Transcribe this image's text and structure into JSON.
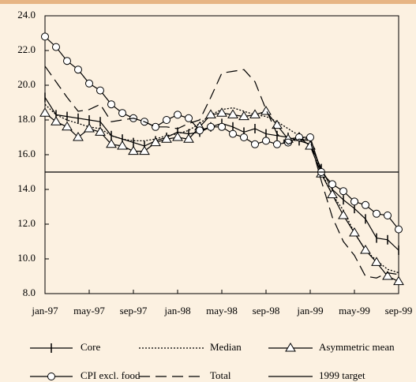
{
  "chart_data": {
    "type": "line",
    "categories": [
      "jan-97",
      null,
      null,
      null,
      "may-97",
      null,
      null,
      null,
      "sep-97",
      null,
      null,
      null,
      "jan-98",
      null,
      null,
      null,
      "may-98",
      null,
      null,
      null,
      "sep-98",
      null,
      null,
      null,
      "jan-99",
      null,
      null,
      null,
      "may-99",
      null,
      null,
      null,
      "sep-99"
    ],
    "ylim": [
      8,
      24
    ],
    "yticks": [
      {
        "value": 8,
        "label": "8.0"
      },
      {
        "value": 10,
        "label": "10.0"
      },
      {
        "value": 12,
        "label": "12.0"
      },
      {
        "value": 14,
        "label": "14.0"
      },
      {
        "value": 16,
        "label": "16.0"
      },
      {
        "value": 18,
        "label": "18.0"
      },
      {
        "value": 20,
        "label": "20.0"
      },
      {
        "value": 22,
        "label": "22.0"
      },
      {
        "value": 24,
        "label": "24.0"
      }
    ],
    "grid": false,
    "series": [
      {
        "name": "Core",
        "color": "#000000",
        "dash": "solid",
        "marker": "plus",
        "values": [
          19.3,
          18.3,
          18.2,
          18.1,
          18.0,
          17.9,
          17.1,
          16.9,
          16.7,
          16.5,
          16.8,
          17.0,
          17.3,
          17.2,
          17.3,
          17.6,
          17.8,
          17.6,
          17.3,
          17.5,
          17.2,
          17.1,
          17.0,
          16.8,
          16.6,
          15.2,
          14.0,
          13.4,
          12.9,
          12.3,
          11.2,
          11.1,
          10.5
        ]
      },
      {
        "name": "Median",
        "color": "#000000",
        "dash": "dotted",
        "marker": "none",
        "values": [
          18.9,
          18.3,
          18.0,
          17.8,
          17.6,
          17.5,
          17.1,
          16.9,
          16.8,
          16.8,
          16.9,
          17.1,
          17.2,
          17.4,
          17.8,
          18.3,
          18.6,
          18.7,
          18.5,
          18.3,
          18.2,
          17.9,
          17.5,
          17.1,
          16.8,
          15.0,
          13.7,
          12.8,
          11.5,
          10.5,
          9.9,
          9.4,
          9.2
        ]
      },
      {
        "name": "Asymmetric mean",
        "color": "#000000",
        "dash": "solid",
        "marker": "triangle",
        "values": [
          18.4,
          17.9,
          17.6,
          17.0,
          17.5,
          17.3,
          16.6,
          16.5,
          16.2,
          16.2,
          16.7,
          16.9,
          17.0,
          16.9,
          17.6,
          18.3,
          18.4,
          18.3,
          18.2,
          18.3,
          18.5,
          17.7,
          16.9,
          17.0,
          16.5,
          14.9,
          13.7,
          12.5,
          11.5,
          10.5,
          9.8,
          9.0,
          8.7
        ]
      },
      {
        "name": "CPI excl. food",
        "color": "#000000",
        "dash": "solid",
        "marker": "circle",
        "values": [
          22.8,
          22.2,
          21.4,
          20.9,
          20.1,
          19.7,
          18.9,
          18.4,
          18.1,
          17.9,
          17.6,
          18.0,
          18.3,
          18.1,
          17.4,
          17.6,
          17.6,
          17.2,
          17.0,
          16.6,
          16.8,
          16.6,
          16.7,
          17.0,
          17.0,
          15.0,
          14.3,
          13.9,
          13.3,
          13.1,
          12.6,
          12.5,
          11.7
        ]
      },
      {
        "name": "Total",
        "color": "#000000",
        "dash": "longdash",
        "marker": "none",
        "values": [
          21.1,
          20.2,
          19.3,
          18.5,
          18.6,
          18.9,
          17.9,
          18.0,
          18.1,
          17.9,
          17.6,
          17.6,
          17.5,
          17.8,
          18.0,
          19.3,
          20.7,
          20.8,
          20.9,
          20.2,
          18.6,
          17.2,
          16.6,
          16.9,
          16.8,
          14.5,
          12.4,
          11.0,
          10.2,
          9.0,
          8.9,
          9.2,
          9.1
        ]
      },
      {
        "name": "1999 target",
        "color": "#000000",
        "dash": "solid",
        "marker": "none",
        "values": [
          15,
          15,
          15,
          15,
          15,
          15,
          15,
          15,
          15,
          15,
          15,
          15,
          15,
          15,
          15,
          15,
          15,
          15,
          15,
          15,
          15,
          15,
          15,
          15,
          15,
          15,
          15,
          15,
          15,
          15,
          15,
          15,
          15
        ]
      }
    ]
  }
}
